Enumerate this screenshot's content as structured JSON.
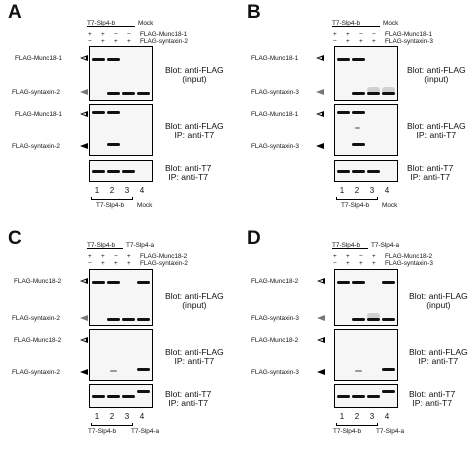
{
  "panels": {
    "A": {
      "label": "A",
      "header": {
        "left": "T7-Slp4-b",
        "right": "Mock"
      },
      "rows": [
        {
          "signs": [
            "+",
            "+",
            "−",
            "−"
          ],
          "name": "FLAG-Munc18-1"
        },
        {
          "signs": [
            "−",
            "+",
            "+",
            "+"
          ],
          "name": "FLAG-syntaxin-2"
        }
      ],
      "blots": [
        {
          "labels": [
            "FLAG-Munc18-1",
            "FLAG-syntaxin-2"
          ],
          "text1": "Blot: anti-FLAG",
          "text2": "(input)"
        },
        {
          "labels": [
            "FLAG-Munc18-1",
            "FLAG-syntaxin-2"
          ],
          "text1": "Blot: anti-FLAG",
          "text2": "IP: anti-T7"
        },
        {
          "labels": [],
          "text1": "Blot: anti-T7",
          "text2": "IP: anti-T7"
        }
      ],
      "lanes": [
        "1",
        "2",
        "3",
        "4"
      ],
      "footer": {
        "left": "T7-Slp4-b",
        "right": "Mock"
      }
    },
    "B": {
      "label": "B",
      "header": {
        "left": "T7-Slp4-b",
        "right": "Mock"
      },
      "rows": [
        {
          "signs": [
            "+",
            "+",
            "−",
            "−"
          ],
          "name": "FLAG-Munc18-1"
        },
        {
          "signs": [
            "−",
            "+",
            "+",
            "+"
          ],
          "name": "FLAG-syntaxin-3"
        }
      ],
      "blots": [
        {
          "labels": [
            "FLAG-Munc18-1",
            "FLAG-syntaxin-3"
          ],
          "text1": "Blot: anti-FLAG",
          "text2": "(input)"
        },
        {
          "labels": [
            "FLAG-Munc18-1",
            "FLAG-syntaxin-3"
          ],
          "text1": "Blot: anti-FLAG",
          "text2": "IP: anti-T7"
        },
        {
          "labels": [],
          "text1": "Blot: anti-T7",
          "text2": "IP: anti-T7"
        }
      ],
      "lanes": [
        "1",
        "2",
        "3",
        "4"
      ],
      "footer": {
        "left": "T7-Slp4-b",
        "right": "Mock"
      }
    },
    "C": {
      "label": "C",
      "header": {
        "left": "T7-Slp4-b",
        "right": "T7-Slp4-a"
      },
      "rows": [
        {
          "signs": [
            "+",
            "+",
            "−",
            "+"
          ],
          "name": "FLAG-Munc18-2"
        },
        {
          "signs": [
            "−",
            "+",
            "+",
            "+"
          ],
          "name": "FLAG-syntaxin-2"
        }
      ],
      "blots": [
        {
          "labels": [
            "FLAG-Munc18-2",
            "FLAG-syntaxin-2"
          ],
          "text1": "Blot: anti-FLAG",
          "text2": "(input)"
        },
        {
          "labels": [
            "FLAG-Munc18-2",
            "FLAG-syntaxin-2"
          ],
          "text1": "Blot: anti-FLAG",
          "text2": "IP: anti-T7"
        },
        {
          "labels": [],
          "text1": "Blot: anti-T7",
          "text2": "IP: anti-T7"
        }
      ],
      "lanes": [
        "1",
        "2",
        "3",
        "4"
      ],
      "footer": {
        "left": "T7-Slp4-b",
        "right": "T7-Slp4-a"
      }
    },
    "D": {
      "label": "D",
      "header": {
        "left": "T7-Slp4-b",
        "right": "T7-Slp4-a"
      },
      "rows": [
        {
          "signs": [
            "+",
            "+",
            "−",
            "+"
          ],
          "name": "FLAG-Munc18-2"
        },
        {
          "signs": [
            "−",
            "+",
            "+",
            "+"
          ],
          "name": "FLAG-syntaxin-3"
        }
      ],
      "blots": [
        {
          "labels": [
            "FLAG-Munc18-2",
            "FLAG-syntaxin-3"
          ],
          "text1": "Blot: anti-FLAG",
          "text2": "(input)"
        },
        {
          "labels": [
            "FLAG-Munc18-2",
            "FLAG-syntaxin-3"
          ],
          "text1": "Blot: anti-FLAG",
          "text2": "IP: anti-T7"
        },
        {
          "labels": [],
          "text1": "Blot: anti-T7",
          "text2": "IP: anti-T7"
        }
      ],
      "lanes": [
        "1",
        "2",
        "3",
        "4"
      ],
      "footer": {
        "left": "T7-Slp4-b",
        "right": "T7-Slp4-a"
      }
    }
  }
}
